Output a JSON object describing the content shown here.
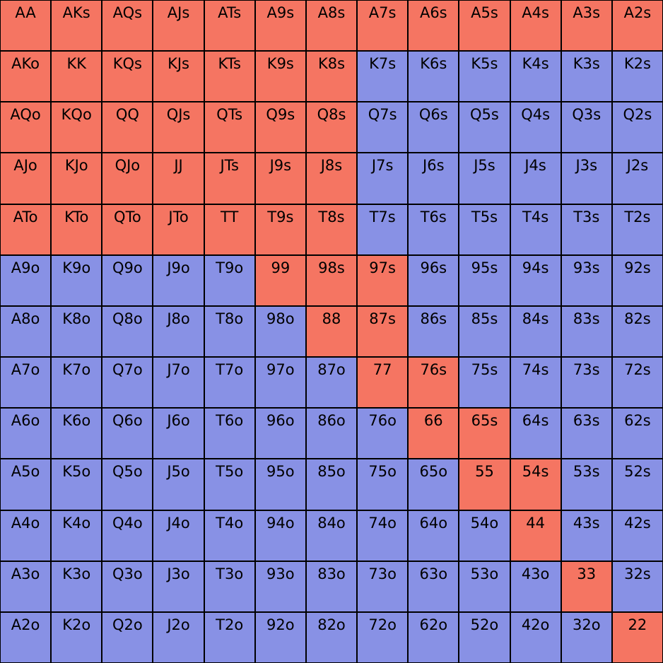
{
  "colors": {
    "raise": "#F57562",
    "fold": "#8891E5",
    "border": "#000000"
  },
  "grid": {
    "rows": [
      [
        "AA",
        "AKs",
        "AQs",
        "AJs",
        "ATs",
        "A9s",
        "A8s",
        "A7s",
        "A6s",
        "A5s",
        "A4s",
        "A3s",
        "A2s"
      ],
      [
        "AKo",
        "KK",
        "KQs",
        "KJs",
        "KTs",
        "K9s",
        "K8s",
        "K7s",
        "K6s",
        "K5s",
        "K4s",
        "K3s",
        "K2s"
      ],
      [
        "AQo",
        "KQo",
        "QQ",
        "QJs",
        "QTs",
        "Q9s",
        "Q8s",
        "Q7s",
        "Q6s",
        "Q5s",
        "Q4s",
        "Q3s",
        "Q2s"
      ],
      [
        "AJo",
        "KJo",
        "QJo",
        "JJ",
        "JTs",
        "J9s",
        "J8s",
        "J7s",
        "J6s",
        "J5s",
        "J4s",
        "J3s",
        "J2s"
      ],
      [
        "ATo",
        "KTo",
        "QTo",
        "JTo",
        "TT",
        "T9s",
        "T8s",
        "T7s",
        "T6s",
        "T5s",
        "T4s",
        "T3s",
        "T2s"
      ],
      [
        "A9o",
        "K9o",
        "Q9o",
        "J9o",
        "T9o",
        "99",
        "98s",
        "97s",
        "96s",
        "95s",
        "94s",
        "93s",
        "92s"
      ],
      [
        "A8o",
        "K8o",
        "Q8o",
        "J8o",
        "T8o",
        "98o",
        "88",
        "87s",
        "86s",
        "85s",
        "84s",
        "83s",
        "82s"
      ],
      [
        "A7o",
        "K7o",
        "Q7o",
        "J7o",
        "T7o",
        "97o",
        "87o",
        "77",
        "76s",
        "75s",
        "74s",
        "73s",
        "72s"
      ],
      [
        "A6o",
        "K6o",
        "Q6o",
        "J6o",
        "T6o",
        "96o",
        "86o",
        "76o",
        "66",
        "65s",
        "64s",
        "63s",
        "62s"
      ],
      [
        "A5o",
        "K5o",
        "Q5o",
        "J5o",
        "T5o",
        "95o",
        "85o",
        "75o",
        "65o",
        "55",
        "54s",
        "53s",
        "52s"
      ],
      [
        "A4o",
        "K4o",
        "Q4o",
        "J4o",
        "T4o",
        "94o",
        "84o",
        "74o",
        "64o",
        "54o",
        "44",
        "43s",
        "42s"
      ],
      [
        "A3o",
        "K3o",
        "Q3o",
        "J3o",
        "T3o",
        "93o",
        "83o",
        "73o",
        "63o",
        "53o",
        "43o",
        "33",
        "32s"
      ],
      [
        "A2o",
        "K2o",
        "Q2o",
        "J2o",
        "T2o",
        "92o",
        "82o",
        "72o",
        "62o",
        "52o",
        "42o",
        "32o",
        "22"
      ]
    ],
    "raise_hands": [
      "AA",
      "AKs",
      "AQs",
      "AJs",
      "ATs",
      "A9s",
      "A8s",
      "A7s",
      "A6s",
      "A5s",
      "A4s",
      "A3s",
      "A2s",
      "AKo",
      "KK",
      "KQs",
      "KJs",
      "KTs",
      "K9s",
      "K8s",
      "AQo",
      "KQo",
      "QQ",
      "QJs",
      "QTs",
      "Q9s",
      "Q8s",
      "AJo",
      "KJo",
      "QJo",
      "JJ",
      "JTs",
      "J9s",
      "J8s",
      "ATo",
      "KTo",
      "QTo",
      "JTo",
      "TT",
      "T9s",
      "T8s",
      "99",
      "98s",
      "97s",
      "88",
      "87s",
      "77",
      "76s",
      "66",
      "65s",
      "55",
      "54s",
      "44",
      "33",
      "22"
    ]
  }
}
